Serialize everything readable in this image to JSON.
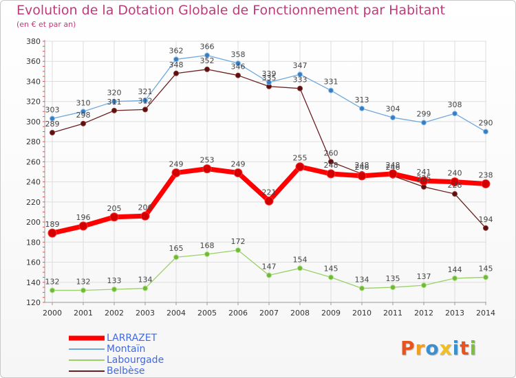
{
  "title": "Evolution de la Dotation Globale de Fonctionnement par Habitant",
  "subtitle": "(en € et par an)",
  "logo": {
    "text": "Proxiti",
    "colors": [
      "#e8541c",
      "#f0a020",
      "#3a8fd0",
      "#f0c020",
      "#3a8fd0",
      "#e8541c",
      "#7cbf3a"
    ]
  },
  "chart_data": {
    "type": "line",
    "x": [
      "2000",
      "2001",
      "2002",
      "2003",
      "2004",
      "2005",
      "2006",
      "2007",
      "2008",
      "2009",
      "2010",
      "2011",
      "2012",
      "2013",
      "2014"
    ],
    "ylim": [
      120,
      380
    ],
    "yticks": [
      120,
      140,
      160,
      180,
      200,
      220,
      240,
      260,
      280,
      300,
      320,
      340,
      360,
      380
    ],
    "series": [
      {
        "name": "LARRAZET",
        "color": "#ff0000",
        "values": [
          189,
          196,
          205,
          206,
          249,
          253,
          249,
          221,
          255,
          248,
          246,
          248,
          241,
          240,
          238
        ]
      },
      {
        "name": "Montaïn",
        "color": "#6fa8dc",
        "values": [
          303,
          310,
          320,
          321,
          362,
          366,
          358,
          339,
          347,
          331,
          313,
          304,
          299,
          308,
          290
        ]
      },
      {
        "name": "Labourgade",
        "color": "#99d066",
        "values": [
          132,
          132,
          133,
          134,
          165,
          168,
          172,
          147,
          154,
          145,
          134,
          135,
          137,
          144,
          145
        ]
      },
      {
        "name": "Belbèse",
        "color": "#6b1e1e",
        "values": [
          289,
          298,
          311,
          312,
          348,
          352,
          346,
          335,
          333,
          260,
          248,
          246,
          235,
          228,
          194
        ]
      }
    ],
    "legend_position": "bottom-left"
  }
}
